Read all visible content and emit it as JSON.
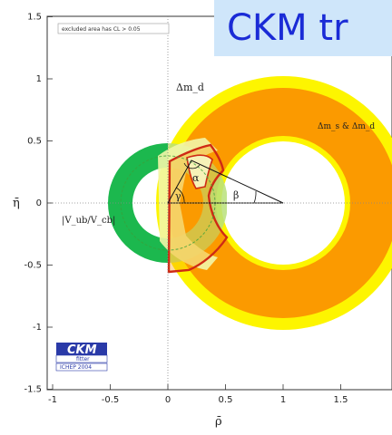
{
  "title": "CKM tr",
  "legend_note": "excluded area has CL > 0.05",
  "x_axis_label": "ρ̄",
  "y_axis_label": "η̄",
  "region_labels": {
    "dmd": "Δm_d",
    "dms": "Δm_s & Δm_d",
    "vub": "|V_ub/V_cb|",
    "alpha": "α",
    "beta": "β",
    "gamma": "γ"
  },
  "logo": {
    "name": "CKM",
    "sub": "fitter",
    "conference": "ICHEP 2004"
  },
  "colors": {
    "dmd_band": "#fdf500",
    "dms_band": "#fb9a00",
    "vub_band": "#1cb84e",
    "eps_band": "#f2f6a8",
    "contour": "#cf2a14",
    "title_bg": "#cfe6fa",
    "title_text": "#1a2bd6"
  },
  "chart_data": {
    "type": "diagram",
    "xlim": [
      -1,
      1.7
    ],
    "ylim": [
      -1.5,
      1.5
    ],
    "x_ticks": [
      -1,
      -0.5,
      0,
      0.5,
      1,
      1.5
    ],
    "y_ticks": [
      -1.5,
      -1,
      -0.5,
      0,
      0.5,
      1,
      1.5
    ],
    "x_tick_labels": [
      "-1",
      "-0.5",
      "0",
      "0.5",
      "1",
      "1.5"
    ],
    "y_tick_labels": [
      "-1.5",
      "-1",
      "-0.5",
      "0",
      "0.5",
      "1",
      "1.5"
    ],
    "triangle_apex": {
      "rho": 0.2,
      "eta": 0.35
    },
    "dmd_annulus": {
      "center": [
        1,
        0
      ],
      "r_inner": 0.45,
      "r_outer": 1.04
    },
    "dms_annulus": {
      "center": [
        1,
        0
      ],
      "r_inner": 0.55,
      "r_outer": 0.95
    },
    "vub_annulus": {
      "center": [
        0,
        0
      ],
      "r_inner": 0.28,
      "r_outer": 0.51
    }
  }
}
